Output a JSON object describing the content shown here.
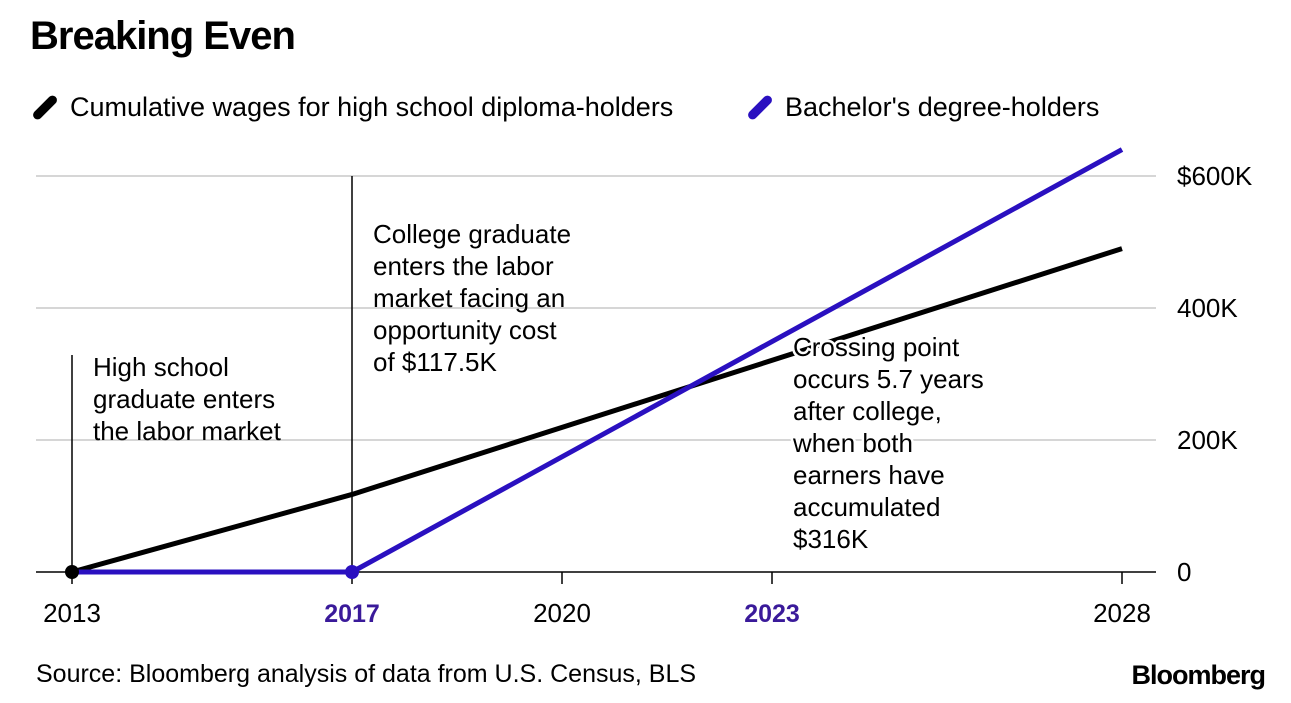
{
  "title": "Breaking Even",
  "legend": [
    {
      "label": "Cumulative wages for high school diploma-holders",
      "color": "#000000"
    },
    {
      "label": "Bachelor's degree-holders",
      "color": "#2a10c0"
    }
  ],
  "source": "Source: Bloomberg analysis of data from U.S. Census, BLS",
  "brand": "Bloomberg",
  "colors": {
    "hs": "#000000",
    "ba": "#2a10c0",
    "grid": "#d6d6d6",
    "highlight_tick": "#3a1a9a"
  },
  "chart_data": {
    "type": "line",
    "title": "Breaking Even",
    "xlabel": "",
    "ylabel": "",
    "xlim": [
      2013,
      2028
    ],
    "ylim": [
      0,
      600
    ],
    "y_units": "thousands of dollars",
    "grid": true,
    "legend_position": "top",
    "x_ticks": [
      {
        "value": 2013,
        "label": "2013",
        "highlight": false
      },
      {
        "value": 2017,
        "label": "2017",
        "highlight": true
      },
      {
        "value": 2020,
        "label": "2020",
        "highlight": false
      },
      {
        "value": 2023,
        "label": "2023",
        "highlight": true
      },
      {
        "value": 2028,
        "label": "2028",
        "highlight": false
      }
    ],
    "y_ticks": [
      {
        "value": 0,
        "label": "0"
      },
      {
        "value": 200,
        "label": "200K"
      },
      {
        "value": 400,
        "label": "400K"
      },
      {
        "value": 600,
        "label": "$600K"
      }
    ],
    "series": [
      {
        "name": "Cumulative wages for high school diploma-holders",
        "color": "#000000",
        "x": [
          2013,
          2017,
          2028
        ],
        "y": [
          0,
          117.5,
          490
        ]
      },
      {
        "name": "Bachelor's degree-holders",
        "color": "#2a10c0",
        "x": [
          2013,
          2017,
          2028
        ],
        "y": [
          0,
          0,
          640
        ]
      }
    ],
    "markers": [
      {
        "x": 2013,
        "y": 0,
        "color": "#000000"
      },
      {
        "x": 2017,
        "y": 0,
        "color": "#2a10c0"
      }
    ],
    "annotations": [
      {
        "x": 2013,
        "lines": [
          "High school",
          "graduate enters",
          "the labor market"
        ]
      },
      {
        "x": 2017,
        "lines": [
          "College graduate",
          "enters the labor",
          "market facing an",
          "opportunity cost",
          "of $117.5K"
        ]
      },
      {
        "x": 2022.7,
        "lines": [
          "Crossing point",
          "occurs 5.7 years",
          "after college,",
          "when both",
          "earners have",
          "accumulated",
          "$316K"
        ]
      }
    ]
  }
}
